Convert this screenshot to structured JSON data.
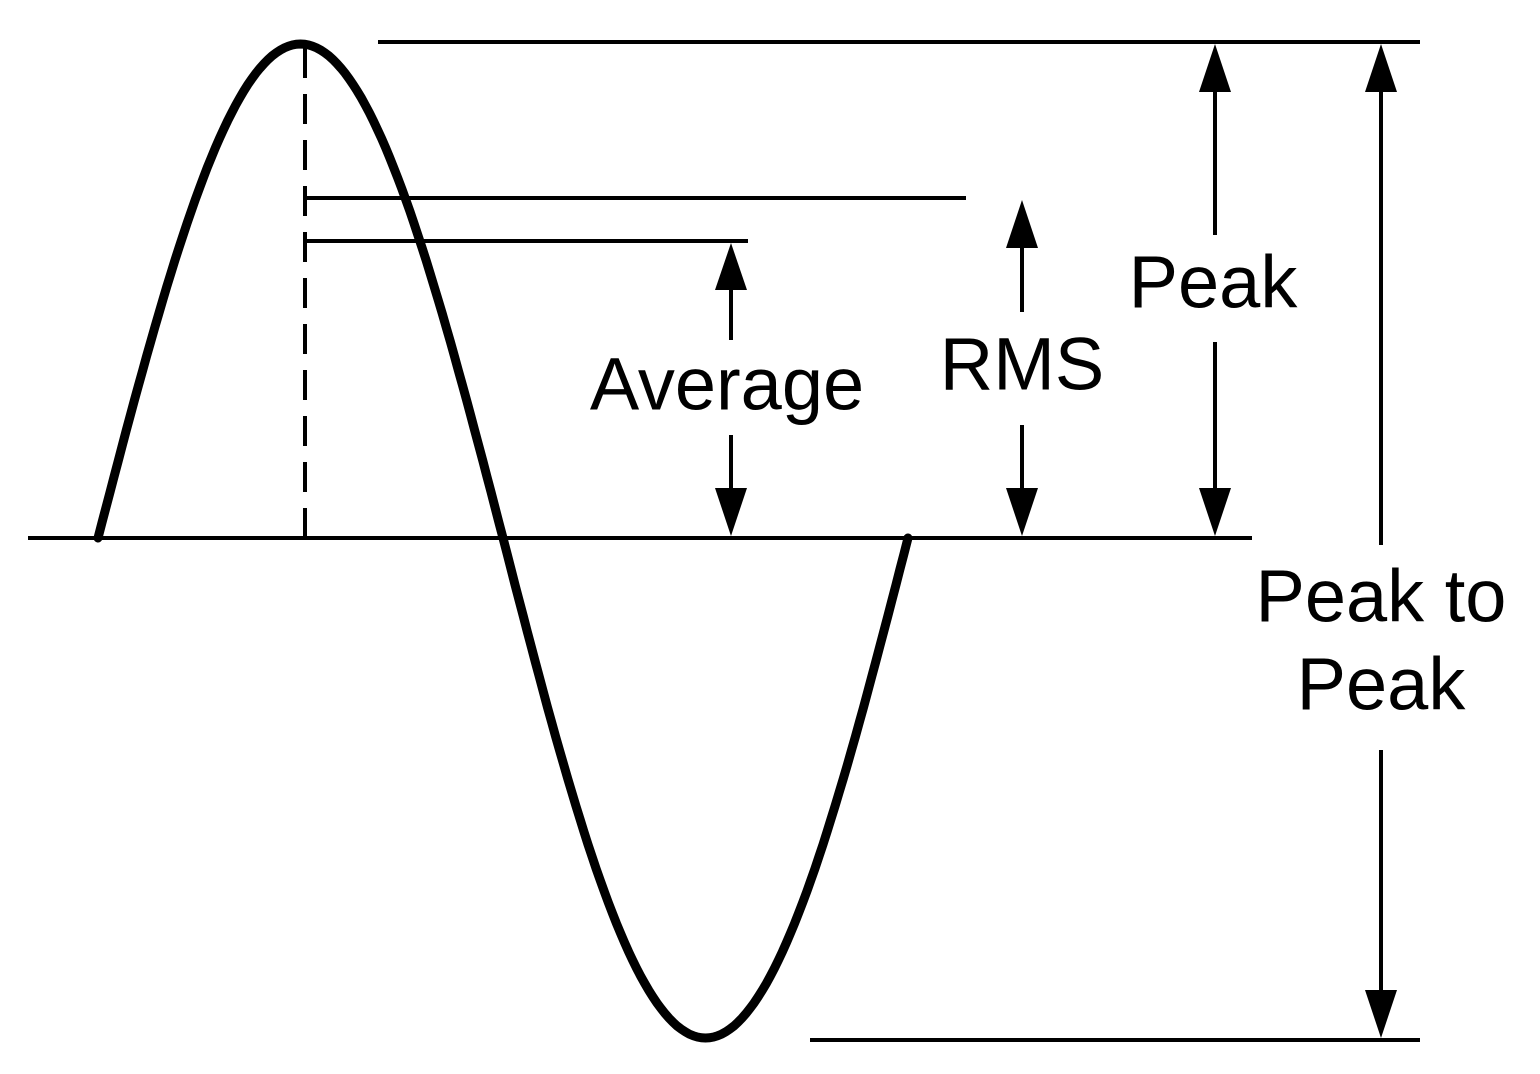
{
  "labels": {
    "average": "Average",
    "rms": "RMS",
    "peak": "Peak",
    "peak_to_peak": [
      "Peak to",
      "Peak"
    ]
  }
}
